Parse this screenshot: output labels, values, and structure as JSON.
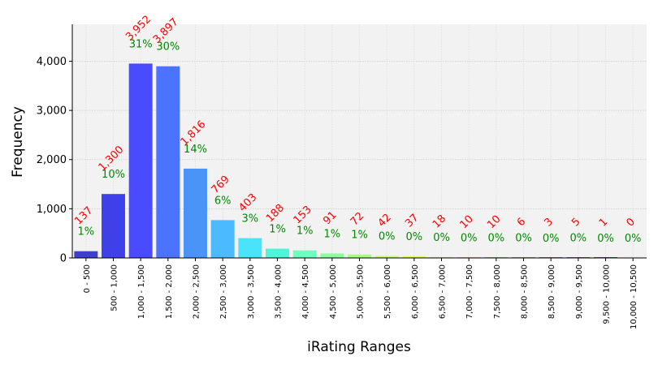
{
  "chart_data": {
    "type": "bar",
    "xlabel": "iRating Ranges",
    "ylabel": "Frequency",
    "ylim": [
      0,
      4750
    ],
    "yticks": [
      0,
      1000,
      2000,
      3000,
      4000
    ],
    "ytick_labels": [
      "0",
      "1,000",
      "2,000",
      "3,000",
      "4,000"
    ],
    "grid": true,
    "categories": [
      "0 - 500",
      "500 - 1,000",
      "1,000 - 1,500",
      "1,500 - 2,000",
      "2,000 - 2,500",
      "2,500 - 3,000",
      "3,000 - 3,500",
      "3,500 - 4,000",
      "4,000 - 4,500",
      "4,500 - 5,000",
      "5,000 - 5,500",
      "5,500 - 6,000",
      "6,000 - 6,500",
      "6,500 - 7,000",
      "7,000 - 7,500",
      "7,500 - 8,000",
      "8,000 - 8,500",
      "8,500 - 9,000",
      "9,000 - 9,500",
      "9,500 - 10,000",
      "10,000 - 10,500"
    ],
    "values": [
      137,
      1300,
      3952,
      3897,
      1816,
      769,
      403,
      188,
      153,
      91,
      72,
      42,
      37,
      18,
      10,
      10,
      6,
      3,
      5,
      1,
      0
    ],
    "count_labels": [
      "137",
      "1,300",
      "3,952",
      "3,897",
      "1,816",
      "769",
      "403",
      "188",
      "153",
      "91",
      "72",
      "42",
      "37",
      "18",
      "10",
      "10",
      "6",
      "3",
      "5",
      "1",
      "0"
    ],
    "percent_labels": [
      "1%",
      "10%",
      "31%",
      "30%",
      "14%",
      "6%",
      "3%",
      "1%",
      "1%",
      "1%",
      "1%",
      "0%",
      "0%",
      "0%",
      "0%",
      "0%",
      "0%",
      "0%",
      "0%",
      "0%",
      "0%"
    ],
    "colors": [
      "#3f3fcf",
      "#4040e8",
      "#4a4aff",
      "#4a74ff",
      "#4a93f7",
      "#4bbaff",
      "#4ae4fa",
      "#4ef5d9",
      "#6dffc0",
      "#8bff9e",
      "#a8ff88",
      "#c4ff6f",
      "#dbff57",
      "#eded4a",
      "#f5d040",
      "#f8b03a",
      "#f89234",
      "#f0702e",
      "#e25428",
      "#d23c20",
      "#c0281a"
    ],
    "count_label_color": "#ff0000",
    "percent_label_color": "#008800",
    "plot_background": "#f2f2f2"
  }
}
